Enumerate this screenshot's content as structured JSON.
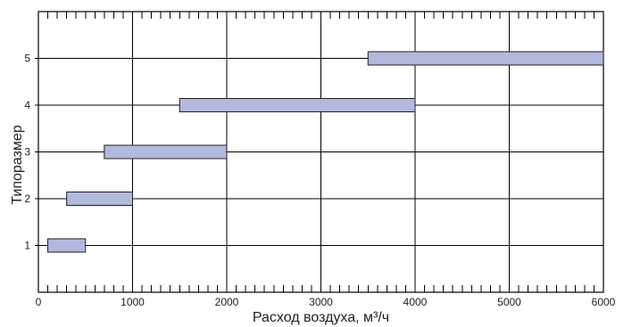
{
  "chart_data": {
    "type": "bar",
    "orientation": "horizontal-range",
    "title": "",
    "xlabel": "Расход воздуха, м³/ч",
    "ylabel": "Типоразмер",
    "xlim": [
      0,
      6000
    ],
    "ylim": [
      0,
      6
    ],
    "x_ticks": [
      "0",
      "1000",
      "2000",
      "3000",
      "4000",
      "5000",
      "6000"
    ],
    "y_ticks": [
      "1",
      "2",
      "3",
      "4",
      "5"
    ],
    "grid": true,
    "bar_color": "#b3b8dd",
    "series": [
      {
        "category": "1",
        "start": 100,
        "end": 500
      },
      {
        "category": "2",
        "start": 300,
        "end": 1000
      },
      {
        "category": "3",
        "start": 700,
        "end": 2000
      },
      {
        "category": "4",
        "start": 1500,
        "end": 4000
      },
      {
        "category": "5",
        "start": 3500,
        "end": 6000
      }
    ]
  }
}
